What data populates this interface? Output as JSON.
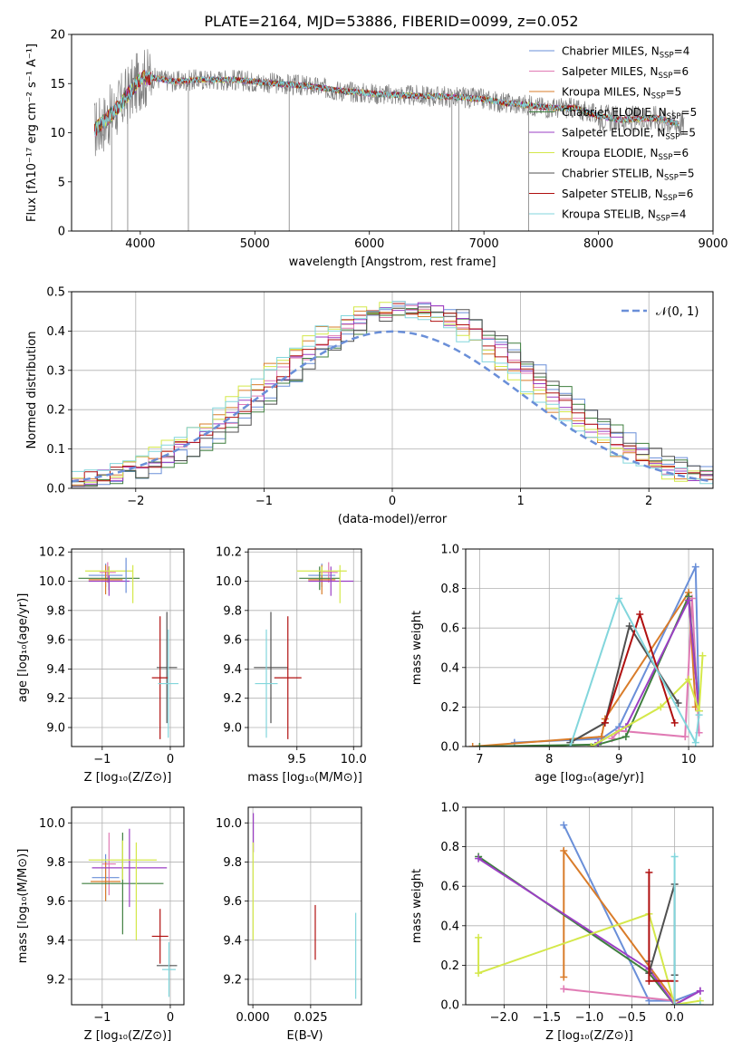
{
  "figure": {
    "title": "PLATE=2164, MJD=53886, FIBERID=0099, z=0.052"
  },
  "colors": {
    "Chabrier MILES": "#6a8fd8",
    "Salpeter MILES": "#e07ab4",
    "Kroupa MILES": "#d97c2a",
    "Chabrier ELODIE": "#3f7f3f",
    "Salpeter ELODIE": "#9b3fc4",
    "Kroupa ELODIE": "#d4e84a",
    "Chabrier STELIB": "#505050",
    "Salpeter STELIB": "#b01010",
    "Kroupa STELIB": "#82d6dc",
    "data": "#808080"
  },
  "chart_data": [
    {
      "panel": "spectrum",
      "type": "line",
      "xlabel": "wavelength [Angstrom, rest frame]",
      "ylabel": "Flux [fλ10⁻¹⁷ erg cm⁻² s⁻¹ A⁻¹]",
      "xlim": [
        3400,
        9000
      ],
      "ylim": [
        0,
        20
      ],
      "xticks": [
        4000,
        5000,
        6000,
        7000,
        8000,
        9000
      ],
      "yticks": [
        0,
        5,
        10,
        15,
        20
      ],
      "grid": false,
      "legend_position": "upper-right",
      "legend": [
        {
          "name": "Chabrier MILES, N",
          "sub": "SSP",
          "suffix": "=4"
        },
        {
          "name": "Salpeter MILES, N",
          "sub": "SSP",
          "suffix": "=6"
        },
        {
          "name": "Kroupa MILES, N",
          "sub": "SSP",
          "suffix": "=5"
        },
        {
          "name": "Chabrier ELODIE, N",
          "sub": "SSP",
          "suffix": "=5"
        },
        {
          "name": "Salpeter ELODIE, N",
          "sub": "SSP",
          "suffix": "=5"
        },
        {
          "name": "Kroupa ELODIE, N",
          "sub": "SSP",
          "suffix": "=6"
        },
        {
          "name": "Chabrier STELIB, N",
          "sub": "SSP",
          "suffix": "=5"
        },
        {
          "name": "Salpeter STELIB, N",
          "sub": "SSP",
          "suffix": "=6"
        },
        {
          "name": "Kroupa STELIB, N",
          "sub": "SSP",
          "suffix": "=4"
        }
      ],
      "continuum": {
        "wavelength": [
          3600,
          3700,
          3800,
          3900,
          4000,
          4100,
          4300,
          4500,
          4800,
          5000,
          5200,
          5500,
          5800,
          6000,
          6300,
          6600,
          6800,
          7000,
          7200,
          7400,
          7600,
          7800,
          8000,
          8200,
          8500,
          8700
        ],
        "flux": [
          10.3,
          11.3,
          12.5,
          14.0,
          15.5,
          15.6,
          15.2,
          15.4,
          15.4,
          15.2,
          15.0,
          14.7,
          14.2,
          14.0,
          13.8,
          13.7,
          13.6,
          13.4,
          13.0,
          12.8,
          12.5,
          12.5,
          11.7,
          11.3,
          11.5,
          10.9
        ]
      },
      "data_span": [
        3600,
        8750
      ],
      "model_span": [
        3600,
        8700
      ],
      "absorption_spikes": [
        {
          "x": 3750,
          "y": 0.0
        },
        {
          "x": 3890,
          "y": 0.0
        },
        {
          "x": 4420,
          "y": 0.0
        },
        {
          "x": 5300,
          "y": 0.0
        },
        {
          "x": 6720,
          "y": 0.0
        },
        {
          "x": 6780,
          "y": 0.0
        },
        {
          "x": 7390,
          "y": 0.0
        }
      ]
    },
    {
      "panel": "residuals",
      "type": "step-histogram",
      "xlabel": "(data-model)/error",
      "ylabel": "Normed distribution",
      "xlim": [
        -2.5,
        2.5
      ],
      "ylim": [
        0,
        0.5
      ],
      "xticks": [
        -2,
        -1,
        0,
        1,
        2
      ],
      "yticks": [
        0.0,
        0.1,
        0.2,
        0.3,
        0.4,
        0.5
      ],
      "grid": true,
      "bin_width": 0.1,
      "legend_position": "upper-right",
      "reference": {
        "name": "𝒩(0, 1)",
        "mean": 0,
        "sigma": 1
      }
    },
    {
      "panel": "Z-age",
      "type": "errorbar",
      "xlabel": "Z [log₁₀(Z/Z⊙)]",
      "ylabel": "age  [log₁₀(age/yr)]",
      "xlim": [
        -1.45,
        0.2
      ],
      "ylim": [
        8.87,
        10.22
      ],
      "xticks": [
        -1,
        0
      ],
      "yticks": [
        9.0,
        9.2,
        9.4,
        9.6,
        9.8,
        10.0,
        10.2
      ],
      "grid": true,
      "points": [
        {
          "series": "Chabrier MILES",
          "x": -0.95,
          "xerr": 0.25,
          "y": 10.04,
          "yerr": 0.08
        },
        {
          "series": "Salpeter MILES",
          "x": -0.92,
          "xerr": 0.12,
          "y": 10.06,
          "yerr": 0.07
        },
        {
          "series": "Kroupa MILES",
          "x": -0.95,
          "xerr": 0.25,
          "y": 10.01,
          "yerr": 0.1
        },
        {
          "series": "Chabrier ELODIE",
          "x": -0.9,
          "xerr": 0.45,
          "y": 10.02,
          "yerr": 0.08
        },
        {
          "series": "Salpeter ELODIE",
          "x": -0.9,
          "xerr": 0.3,
          "y": 10.0,
          "yerr": 0.1
        },
        {
          "series": "Kroupa ELODIE",
          "x": -0.9,
          "xerr": 0.35,
          "y": 10.07,
          "yerr": 0.03
        },
        {
          "series": "Kroupa ELODIE",
          "x": -0.55,
          "xerr": 0.0,
          "y": 9.98,
          "yerr": 0.13
        },
        {
          "series": "Chabrier MILES",
          "x": -0.65,
          "xerr": 0.0,
          "y": 10.04,
          "yerr": 0.12
        },
        {
          "series": "Chabrier STELIB",
          "x": -0.05,
          "xerr": 0.15,
          "y": 9.41,
          "yerr": 0.38
        },
        {
          "series": "Salpeter STELIB",
          "x": -0.15,
          "xerr": 0.12,
          "y": 9.34,
          "yerr": 0.42
        },
        {
          "series": "Kroupa STELIB",
          "x": -0.03,
          "xerr": 0.15,
          "y": 9.3,
          "yerr": 0.37
        }
      ]
    },
    {
      "panel": "mass-age",
      "type": "errorbar",
      "xlabel": "mass [log₁₀(M/M⊙)]",
      "ylabel": "",
      "xlim": [
        9.07,
        10.07
      ],
      "ylim": [
        8.87,
        10.22
      ],
      "xticks": [
        9.5,
        10.0
      ],
      "yticks": [
        9.0,
        9.2,
        9.4,
        9.6,
        9.8,
        10.0,
        10.2
      ],
      "grid": true,
      "points": [
        {
          "series": "Chabrier MILES",
          "x": 9.72,
          "xerr": 0.12,
          "y": 10.04,
          "yerr": 0.08
        },
        {
          "series": "Salpeter MILES",
          "x": 9.78,
          "xerr": 0.08,
          "y": 10.06,
          "yerr": 0.07
        },
        {
          "series": "Kroupa MILES",
          "x": 9.72,
          "xerr": 0.12,
          "y": 10.01,
          "yerr": 0.1
        },
        {
          "series": "Chabrier ELODIE",
          "x": 9.7,
          "xerr": 0.18,
          "y": 10.02,
          "yerr": 0.08
        },
        {
          "series": "Salpeter ELODIE",
          "x": 9.8,
          "xerr": 0.2,
          "y": 10.0,
          "yerr": 0.1
        },
        {
          "series": "Kroupa ELODIE",
          "x": 9.72,
          "xerr": 0.22,
          "y": 10.07,
          "yerr": 0.03
        },
        {
          "series": "Kroupa ELODIE",
          "x": 9.88,
          "xerr": 0.0,
          "y": 9.98,
          "yerr": 0.13
        },
        {
          "series": "Chabrier STELIB",
          "x": 9.27,
          "xerr": 0.15,
          "y": 9.41,
          "yerr": 0.38
        },
        {
          "series": "Salpeter STELIB",
          "x": 9.42,
          "xerr": 0.12,
          "y": 9.34,
          "yerr": 0.42
        },
        {
          "series": "Kroupa STELIB",
          "x": 9.23,
          "xerr": 0.1,
          "y": 9.3,
          "yerr": 0.37
        }
      ]
    },
    {
      "panel": "age-weight",
      "type": "line",
      "xlabel": "age  [log₁₀(age/yr)]",
      "ylabel": "mass weight",
      "xlim": [
        6.8,
        10.35
      ],
      "ylim": [
        0,
        1.0
      ],
      "xticks": [
        7,
        8,
        9,
        10
      ],
      "yticks": [
        0.0,
        0.2,
        0.4,
        0.6,
        0.8,
        1.0
      ],
      "grid": true,
      "series": [
        {
          "name": "Chabrier MILES",
          "x": [
            7.5,
            8.75,
            9.0,
            10.1,
            10.15
          ],
          "y": [
            0.02,
            0.04,
            0.1,
            0.91,
            0.18
          ]
        },
        {
          "name": "Salpeter MILES",
          "x": [
            8.9,
            9.0,
            9.95,
            10.05,
            10.15
          ],
          "y": [
            0.04,
            0.08,
            0.05,
            0.75,
            0.07
          ]
        },
        {
          "name": "Kroupa MILES",
          "x": [
            6.9,
            8.75,
            8.8,
            10.0,
            10.1
          ],
          "y": [
            0.0,
            0.05,
            0.14,
            0.78,
            0.2
          ]
        },
        {
          "name": "Chabrier ELODIE",
          "x": [
            7.0,
            8.7,
            9.1,
            10.0,
            10.15
          ],
          "y": [
            0.0,
            0.01,
            0.05,
            0.76,
            0.18
          ]
        },
        {
          "name": "Salpeter ELODIE",
          "x": [
            8.7,
            9.1,
            10.0,
            10.15
          ],
          "y": [
            0.02,
            0.1,
            0.74,
            0.18
          ]
        },
        {
          "name": "Kroupa ELODIE",
          "x": [
            8.6,
            9.6,
            10.0,
            10.15,
            10.2
          ],
          "y": [
            0.0,
            0.2,
            0.34,
            0.18,
            0.46
          ]
        },
        {
          "name": "Chabrier STELIB",
          "x": [
            8.3,
            8.8,
            9.15,
            9.85
          ],
          "y": [
            0.02,
            0.12,
            0.61,
            0.22
          ]
        },
        {
          "name": "Salpeter STELIB",
          "x": [
            8.8,
            9.3,
            9.8
          ],
          "y": [
            0.12,
            0.67,
            0.12
          ]
        },
        {
          "name": "Kroupa STELIB",
          "x": [
            8.3,
            9.0,
            10.1,
            10.15
          ],
          "y": [
            0.0,
            0.75,
            0.02,
            0.16
          ]
        }
      ]
    },
    {
      "panel": "Z-mass",
      "type": "errorbar",
      "xlabel": "Z [log₁₀(Z/Z⊙)]",
      "ylabel": "mass [log₁₀(M/M⊙)]",
      "xlim": [
        -1.45,
        0.2
      ],
      "ylim": [
        9.07,
        10.08
      ],
      "xticks": [
        -1,
        0
      ],
      "yticks": [
        9.2,
        9.4,
        9.6,
        9.8,
        10.0
      ],
      "grid": true,
      "points": [
        {
          "series": "Chabrier MILES",
          "x": -0.95,
          "xerr": 0.2,
          "y": 9.72,
          "yerr": 0.12
        },
        {
          "series": "Salpeter MILES",
          "x": -0.9,
          "xerr": 0.1,
          "y": 9.79,
          "yerr": 0.16
        },
        {
          "series": "Kroupa MILES",
          "x": -0.95,
          "xerr": 0.22,
          "y": 9.7,
          "yerr": 0.1
        },
        {
          "series": "Chabrier ELODIE",
          "x": -0.7,
          "xerr": 0.6,
          "y": 9.69,
          "yerr": 0.26
        },
        {
          "series": "Salpeter ELODIE",
          "x": -0.6,
          "xerr": 0.55,
          "y": 9.77,
          "yerr": 0.2
        },
        {
          "series": "Kroupa ELODIE",
          "x": -0.7,
          "xerr": 0.5,
          "y": 9.81,
          "yerr": 0.1
        },
        {
          "series": "Kroupa ELODIE",
          "x": -0.5,
          "xerr": 0.0,
          "y": 9.65,
          "yerr": 0.25
        },
        {
          "series": "Chabrier STELIB",
          "x": -0.05,
          "xerr": 0.15,
          "y": 9.27,
          "yerr": 0.0
        },
        {
          "series": "Salpeter STELIB",
          "x": -0.15,
          "xerr": 0.12,
          "y": 9.42,
          "yerr": 0.14
        },
        {
          "series": "Kroupa STELIB",
          "x": -0.02,
          "xerr": 0.1,
          "y": 9.25,
          "yerr": 0.14
        }
      ]
    },
    {
      "panel": "ebv-mass",
      "type": "errorbar",
      "xlabel": "E(B-V)",
      "ylabel": "",
      "xlim": [
        -0.002,
        0.047
      ],
      "ylim": [
        9.07,
        10.08
      ],
      "xticks": [
        0.0,
        0.025
      ],
      "xtick_labels": [
        "0.000",
        "0.025"
      ],
      "yticks": [
        9.2,
        9.4,
        9.6,
        9.8,
        10.0
      ],
      "grid": true,
      "points": [
        {
          "series": "Salpeter ELODIE",
          "x": 0.0002,
          "y": 9.95,
          "yerr": 0.1
        },
        {
          "series": "Kroupa ELODIE",
          "x": 0.0001,
          "y": 9.65,
          "yerr": 0.25
        },
        {
          "series": "Salpeter STELIB",
          "x": 0.027,
          "y": 9.44,
          "yerr": 0.14
        },
        {
          "series": "Kroupa STELIB",
          "x": 0.0445,
          "y": 9.32,
          "yerr": 0.22
        }
      ]
    },
    {
      "panel": "Z-weight",
      "type": "line",
      "xlabel": "Z [log₁₀(Z/Z⊙)]",
      "ylabel": "mass weight",
      "xlim": [
        -2.45,
        0.45
      ],
      "ylim": [
        0,
        1.0
      ],
      "xticks": [
        -2.0,
        -1.5,
        -1.0,
        -0.5,
        0.0
      ],
      "xtick_labels": [
        "−2.0",
        "−1.5",
        "−1.0",
        "−0.5",
        "0.0"
      ],
      "yticks": [
        0.0,
        0.2,
        0.4,
        0.6,
        0.8,
        1.0
      ],
      "grid": true,
      "series": [
        {
          "name": "Chabrier MILES",
          "x": [
            -1.3,
            -0.3,
            0.0,
            0.3
          ],
          "y": [
            0.91,
            0.02,
            0.02,
            0.07
          ]
        },
        {
          "name": "Salpeter MILES",
          "x": [
            -1.3,
            0.0,
            0.0,
            0.3
          ],
          "y": [
            0.08,
            0.02,
            0.0,
            0.07
          ]
        },
        {
          "name": "Kroupa MILES",
          "x": [
            -1.3,
            -1.3,
            0.0,
            0.0
          ],
          "y": [
            0.14,
            0.78,
            0.02,
            0.0
          ]
        },
        {
          "name": "Chabrier ELODIE",
          "x": [
            -2.3,
            -0.3,
            0.0
          ],
          "y": [
            0.75,
            0.16,
            0.0
          ]
        },
        {
          "name": "Salpeter ELODIE",
          "x": [
            -2.3,
            -0.3,
            0.0,
            0.3
          ],
          "y": [
            0.74,
            0.18,
            0.0,
            0.07
          ]
        },
        {
          "name": "Kroupa ELODIE",
          "x": [
            -2.3,
            -2.3,
            -0.3,
            0.0,
            0.3
          ],
          "y": [
            0.34,
            0.16,
            0.46,
            0.0,
            0.02
          ]
        },
        {
          "name": "Chabrier STELIB",
          "x": [
            -0.3,
            -0.3,
            0.0,
            0.0
          ],
          "y": [
            0.22,
            0.16,
            0.61,
            0.15
          ]
        },
        {
          "name": "Salpeter STELIB",
          "x": [
            -0.3,
            -0.3,
            0.0,
            0.0
          ],
          "y": [
            0.67,
            0.12,
            0.12,
            0.0
          ]
        },
        {
          "name": "Kroupa STELIB",
          "x": [
            0.0,
            0.0,
            0.3
          ],
          "y": [
            0.75,
            0.0,
            0.0
          ]
        }
      ]
    }
  ]
}
